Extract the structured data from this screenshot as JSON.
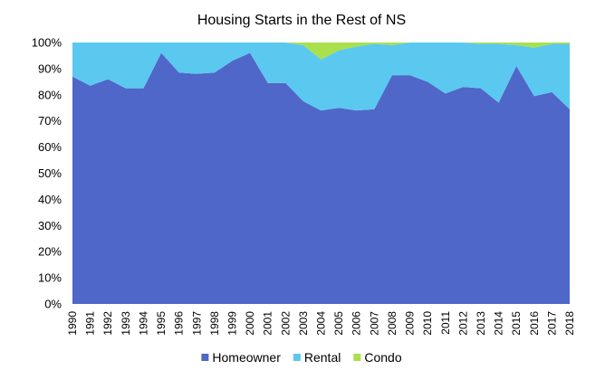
{
  "chart_data": {
    "type": "area",
    "stacked": "percent",
    "title": "Housing Starts in the Rest of NS",
    "xlabel": "",
    "ylabel": "",
    "categories": [
      "1990",
      "1991",
      "1992",
      "1993",
      "1994",
      "1995",
      "1996",
      "1997",
      "1998",
      "1999",
      "2000",
      "2001",
      "2002",
      "2003",
      "2004",
      "2005",
      "2006",
      "2007",
      "2008",
      "2009",
      "2010",
      "2011",
      "2012",
      "2013",
      "2014",
      "2015",
      "2016",
      "2017",
      "2018"
    ],
    "y_ticks": [
      "0%",
      "10%",
      "20%",
      "30%",
      "40%",
      "50%",
      "60%",
      "70%",
      "80%",
      "90%",
      "100%"
    ],
    "ylim": [
      0,
      100
    ],
    "grid": false,
    "legend_position": "bottom",
    "series": [
      {
        "name": "Homeowner",
        "color": "#4F67C8",
        "values": [
          87,
          83.5,
          86,
          82.5,
          82.5,
          96,
          88.5,
          88,
          88.5,
          93,
          96,
          84.5,
          84.5,
          77.5,
          74,
          75,
          74,
          74.5,
          87.5,
          87.5,
          85,
          80.5,
          83,
          82.5,
          77,
          91,
          79.5,
          81,
          74.5
        ]
      },
      {
        "name": "Rental",
        "color": "#5BC8F0",
        "values": [
          13,
          16.5,
          14,
          17.5,
          17.5,
          4,
          11.5,
          12,
          11.5,
          7,
          4,
          15.5,
          15.5,
          21.5,
          19.5,
          22,
          24.5,
          25,
          11.5,
          12.5,
          15,
          19.5,
          17,
          17,
          22.5,
          8,
          18.5,
          18.5,
          25
        ]
      },
      {
        "name": "Condo",
        "color": "#A9E04B",
        "values": [
          0,
          0,
          0,
          0,
          0,
          0,
          0,
          0,
          0,
          0,
          0,
          0,
          0,
          1,
          6.5,
          3,
          1.5,
          0.5,
          1,
          0,
          0,
          0,
          0,
          0.5,
          0.5,
          1,
          2,
          0.5,
          0.5
        ]
      }
    ]
  }
}
